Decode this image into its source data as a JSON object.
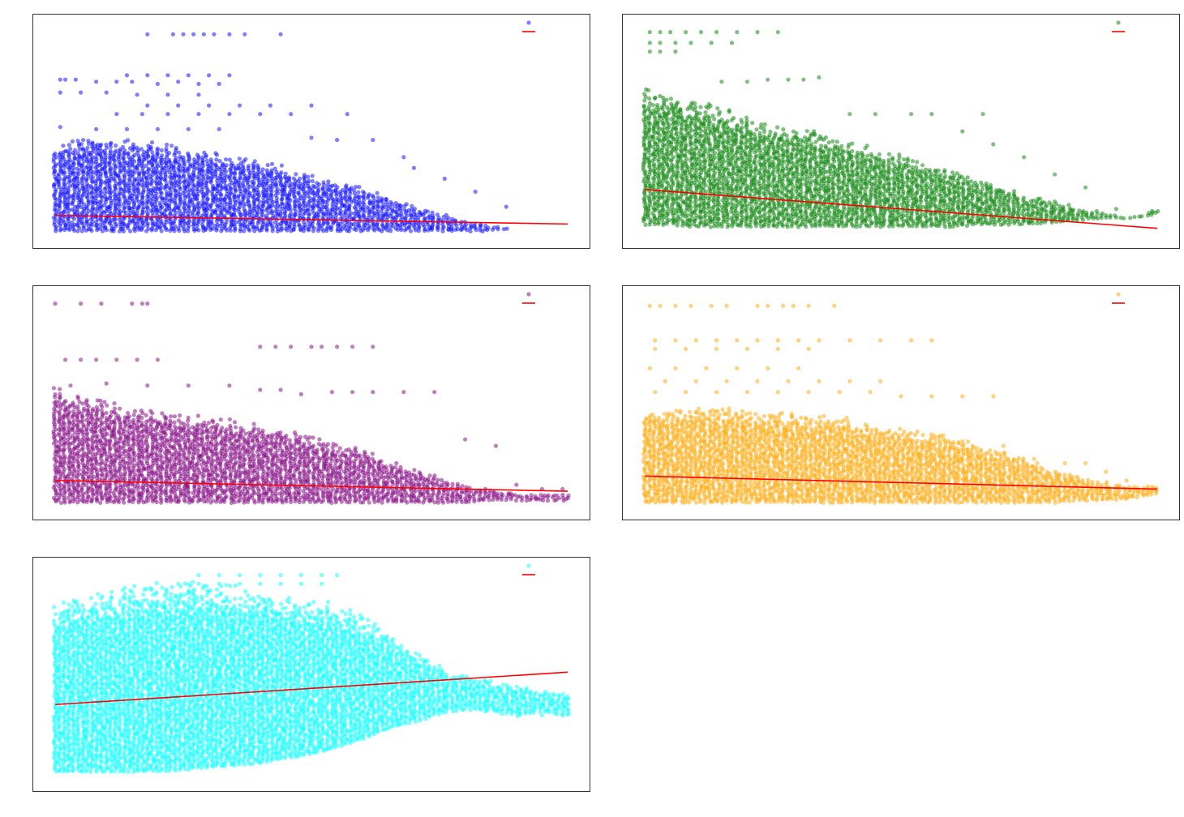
{
  "chart_data": [
    {
      "type": "scatter",
      "title": "",
      "xlabel": "",
      "ylabel": "",
      "grid": false,
      "legend": "top-right",
      "xlim": [
        0,
        100
      ],
      "ylim": [
        0,
        100
      ],
      "colors": {
        "points": "#0000ff",
        "fit": "#ff0000"
      },
      "series": [
        {
          "role": "points"
        },
        {
          "role": "fit",
          "kind": "line",
          "x": [
            0,
            100
          ],
          "y": [
            11,
            7
          ]
        }
      ],
      "point_cloud": {
        "x": [
          0,
          5,
          10,
          15,
          20,
          25,
          30,
          35,
          40,
          45,
          50,
          55,
          60,
          65,
          70,
          75,
          80,
          85,
          90,
          95,
          100
        ],
        "y_max": [
          45,
          49,
          48,
          47,
          46,
          44,
          42,
          40,
          38,
          34,
          30,
          27,
          24,
          20,
          16,
          12,
          9,
          6,
          4,
          3,
          3
        ],
        "y_min": [
          4,
          4,
          4,
          4,
          4,
          4,
          4,
          4,
          4,
          4,
          4,
          4,
          4,
          4,
          4,
          4,
          4,
          4,
          5,
          5,
          5
        ]
      },
      "outliers": [
        [
          18,
          95
        ],
        [
          23,
          95
        ],
        [
          25,
          95
        ],
        [
          27,
          95
        ],
        [
          29,
          95
        ],
        [
          31,
          95
        ],
        [
          34,
          95
        ],
        [
          37,
          95
        ],
        [
          44,
          95
        ],
        [
          1,
          74
        ],
        [
          2,
          74
        ],
        [
          4,
          74
        ],
        [
          8,
          73
        ],
        [
          12,
          73
        ],
        [
          15,
          73
        ],
        [
          20,
          72
        ],
        [
          24,
          73
        ],
        [
          28,
          72
        ],
        [
          32,
          72
        ],
        [
          14,
          76
        ],
        [
          18,
          76
        ],
        [
          22,
          76
        ],
        [
          26,
          76
        ],
        [
          30,
          76
        ],
        [
          34,
          76
        ],
        [
          1,
          68
        ],
        [
          5,
          68
        ],
        [
          10,
          68
        ],
        [
          16,
          67
        ],
        [
          22,
          67
        ],
        [
          28,
          67
        ],
        [
          12,
          58
        ],
        [
          17,
          58
        ],
        [
          22,
          58
        ],
        [
          28,
          58
        ],
        [
          34,
          58
        ],
        [
          40,
          58
        ],
        [
          46,
          58
        ],
        [
          57,
          58
        ],
        [
          18,
          62
        ],
        [
          24,
          62
        ],
        [
          30,
          62
        ],
        [
          36,
          62
        ],
        [
          42,
          62
        ],
        [
          50,
          62
        ],
        [
          1,
          52
        ],
        [
          8,
          51
        ],
        [
          14,
          51
        ],
        [
          20,
          51
        ],
        [
          26,
          51
        ],
        [
          32,
          51
        ],
        [
          50,
          47
        ],
        [
          55,
          46
        ],
        [
          62,
          46
        ],
        [
          68,
          38
        ],
        [
          70,
          33
        ],
        [
          76,
          28
        ],
        [
          82,
          22
        ],
        [
          88,
          15
        ]
      ]
    },
    {
      "type": "scatter",
      "title": "",
      "xlabel": "",
      "ylabel": "",
      "grid": false,
      "legend": "top-right",
      "xlim": [
        0,
        100
      ],
      "ylim": [
        0,
        100
      ],
      "colors": {
        "points": "#008000",
        "fit": "#ff0000"
      },
      "series": [
        {
          "role": "points"
        },
        {
          "role": "fit",
          "kind": "line",
          "x": [
            0,
            100
          ],
          "y": [
            23,
            5
          ]
        }
      ],
      "point_cloud": {
        "x": [
          0,
          5,
          10,
          15,
          20,
          25,
          30,
          35,
          40,
          45,
          50,
          55,
          60,
          65,
          70,
          75,
          80,
          85,
          90,
          95,
          100
        ],
        "y_max": [
          72,
          68,
          66,
          62,
          58,
          55,
          52,
          50,
          46,
          42,
          40,
          36,
          33,
          28,
          24,
          20,
          18,
          14,
          12,
          10,
          14
        ],
        "y_min": [
          7,
          7,
          6,
          6,
          6,
          6,
          6,
          6,
          6,
          6,
          6,
          6,
          6,
          7,
          7,
          7,
          8,
          9,
          10,
          10,
          12
        ]
      },
      "outliers": [
        [
          1,
          96
        ],
        [
          3,
          96
        ],
        [
          5,
          96
        ],
        [
          8,
          96
        ],
        [
          11,
          96
        ],
        [
          14,
          96
        ],
        [
          18,
          96
        ],
        [
          22,
          96
        ],
        [
          26,
          96
        ],
        [
          1,
          91
        ],
        [
          3,
          91
        ],
        [
          6,
          91
        ],
        [
          9,
          91
        ],
        [
          13,
          91
        ],
        [
          17,
          91
        ],
        [
          1,
          87
        ],
        [
          3,
          87
        ],
        [
          6,
          87
        ],
        [
          15,
          73
        ],
        [
          20,
          73
        ],
        [
          24,
          74
        ],
        [
          28,
          74
        ],
        [
          31,
          74
        ],
        [
          34,
          75
        ],
        [
          40,
          58
        ],
        [
          45,
          58
        ],
        [
          52,
          58
        ],
        [
          56,
          58
        ],
        [
          66,
          58
        ],
        [
          62,
          50
        ],
        [
          68,
          44
        ],
        [
          74,
          38
        ],
        [
          80,
          30
        ],
        [
          86,
          24
        ],
        [
          92,
          14
        ],
        [
          99,
          13
        ]
      ]
    },
    {
      "type": "scatter",
      "title": "",
      "xlabel": "",
      "ylabel": "",
      "grid": false,
      "legend": "top-right",
      "xlim": [
        0,
        100
      ],
      "ylim": [
        0,
        100
      ],
      "colors": {
        "points": "#800080",
        "fit": "#ff0000"
      },
      "series": [
        {
          "role": "points"
        },
        {
          "role": "fit",
          "kind": "line",
          "x": [
            0,
            100
          ],
          "y": [
            14,
            9
          ]
        }
      ],
      "point_cloud": {
        "x": [
          0,
          5,
          10,
          15,
          20,
          25,
          30,
          35,
          40,
          45,
          50,
          55,
          60,
          65,
          70,
          75,
          80,
          85,
          90,
          95,
          100
        ],
        "y_max": [
          58,
          55,
          52,
          50,
          48,
          46,
          44,
          42,
          40,
          38,
          35,
          32,
          28,
          24,
          20,
          16,
          12,
          10,
          8,
          8,
          8
        ],
        "y_min": [
          4,
          4,
          4,
          4,
          4,
          4,
          4,
          4,
          4,
          4,
          4,
          4,
          4,
          4,
          4,
          4,
          4,
          5,
          5,
          5,
          5
        ]
      },
      "outliers": [
        [
          0,
          96
        ],
        [
          5,
          96
        ],
        [
          9,
          96
        ],
        [
          15,
          96
        ],
        [
          17,
          96
        ],
        [
          18,
          96
        ],
        [
          40,
          76
        ],
        [
          43,
          76
        ],
        [
          46,
          76
        ],
        [
          50,
          76
        ],
        [
          52,
          76
        ],
        [
          55,
          76
        ],
        [
          58,
          76
        ],
        [
          62,
          76
        ],
        [
          2,
          70
        ],
        [
          5,
          70
        ],
        [
          8,
          70
        ],
        [
          12,
          70
        ],
        [
          16,
          70
        ],
        [
          20,
          70
        ],
        [
          3,
          58
        ],
        [
          10,
          59
        ],
        [
          18,
          58
        ],
        [
          26,
          58
        ],
        [
          34,
          58
        ],
        [
          40,
          56
        ],
        [
          44,
          56
        ],
        [
          48,
          54
        ],
        [
          54,
          55
        ],
        [
          58,
          55
        ],
        [
          62,
          55
        ],
        [
          68,
          55
        ],
        [
          74,
          55
        ],
        [
          80,
          33
        ],
        [
          86,
          30
        ],
        [
          90,
          12
        ],
        [
          95,
          10
        ],
        [
          99,
          10
        ]
      ]
    },
    {
      "type": "scatter",
      "title": "",
      "xlabel": "",
      "ylabel": "",
      "grid": false,
      "legend": "top-right",
      "xlim": [
        0,
        100
      ],
      "ylim": [
        0,
        100
      ],
      "colors": {
        "points": "#ffa500",
        "fit": "#ff0000"
      },
      "series": [
        {
          "role": "points"
        },
        {
          "role": "fit",
          "kind": "line",
          "x": [
            0,
            100
          ],
          "y": [
            16,
            10
          ]
        }
      ],
      "point_cloud": {
        "x": [
          0,
          5,
          10,
          15,
          20,
          25,
          30,
          35,
          40,
          45,
          50,
          55,
          60,
          65,
          70,
          75,
          80,
          85,
          90,
          95,
          100
        ],
        "y_max": [
          48,
          48,
          49,
          49,
          48,
          47,
          46,
          45,
          43,
          41,
          39,
          37,
          35,
          32,
          28,
          24,
          20,
          16,
          14,
          12,
          12
        ],
        "y_min": [
          4,
          4,
          4,
          4,
          4,
          4,
          4,
          4,
          4,
          4,
          4,
          4,
          4,
          4,
          4,
          4,
          4,
          5,
          5,
          6,
          8
        ]
      },
      "outliers": [
        [
          1,
          95
        ],
        [
          3,
          95
        ],
        [
          6,
          95
        ],
        [
          9,
          95
        ],
        [
          13,
          95
        ],
        [
          16,
          95
        ],
        [
          22,
          95
        ],
        [
          24,
          95
        ],
        [
          27,
          95
        ],
        [
          29,
          95
        ],
        [
          32,
          95
        ],
        [
          37,
          95
        ],
        [
          2,
          79
        ],
        [
          6,
          79
        ],
        [
          10,
          79
        ],
        [
          14,
          79
        ],
        [
          18,
          79
        ],
        [
          22,
          79
        ],
        [
          26,
          79
        ],
        [
          30,
          79
        ],
        [
          34,
          79
        ],
        [
          40,
          79
        ],
        [
          46,
          79
        ],
        [
          52,
          79
        ],
        [
          56,
          79
        ],
        [
          2,
          75
        ],
        [
          8,
          75
        ],
        [
          14,
          75
        ],
        [
          20,
          75
        ],
        [
          26,
          75
        ],
        [
          32,
          75
        ],
        [
          1,
          66
        ],
        [
          6,
          66
        ],
        [
          12,
          66
        ],
        [
          18,
          66
        ],
        [
          24,
          66
        ],
        [
          30,
          66
        ],
        [
          4,
          60
        ],
        [
          10,
          60
        ],
        [
          16,
          60
        ],
        [
          22,
          60
        ],
        [
          28,
          60
        ],
        [
          34,
          60
        ],
        [
          40,
          60
        ],
        [
          46,
          60
        ],
        [
          2,
          55
        ],
        [
          8,
          55
        ],
        [
          14,
          55
        ],
        [
          20,
          55
        ],
        [
          26,
          55
        ],
        [
          32,
          55
        ],
        [
          38,
          55
        ],
        [
          44,
          55
        ],
        [
          50,
          53
        ],
        [
          56,
          53
        ],
        [
          62,
          53
        ],
        [
          68,
          53
        ],
        [
          70,
          30
        ],
        [
          76,
          24
        ],
        [
          82,
          22
        ],
        [
          86,
          22
        ],
        [
          90,
          18
        ],
        [
          94,
          14
        ],
        [
          99,
          11
        ]
      ]
    },
    {
      "type": "scatter",
      "title": "",
      "xlabel": "",
      "ylabel": "",
      "grid": false,
      "legend": "top-right",
      "xlim": [
        0,
        100
      ],
      "ylim": [
        0,
        100
      ],
      "colors": {
        "points": "#00ffff",
        "fit": "#ff0000"
      },
      "series": [
        {
          "role": "points"
        },
        {
          "role": "fit",
          "kind": "line",
          "x": [
            0,
            100
          ],
          "y": [
            36,
            51
          ]
        }
      ],
      "point_cloud": {
        "x": [
          0,
          5,
          10,
          15,
          20,
          25,
          30,
          35,
          40,
          45,
          50,
          55,
          60,
          65,
          70,
          75,
          80,
          85,
          90,
          95,
          100
        ],
        "y_max": [
          85,
          88,
          90,
          92,
          94,
          94,
          93,
          92,
          90,
          88,
          86,
          83,
          78,
          70,
          62,
          55,
          50,
          47,
          45,
          43,
          42
        ],
        "y_min": [
          5,
          5,
          5,
          5,
          5,
          6,
          7,
          8,
          9,
          11,
          13,
          16,
          20,
          25,
          28,
          32,
          34,
          33,
          31,
          33,
          31
        ]
      },
      "outliers": [
        [
          28,
          96
        ],
        [
          32,
          96
        ],
        [
          36,
          96
        ],
        [
          40,
          96
        ],
        [
          44,
          96
        ],
        [
          48,
          96
        ],
        [
          52,
          96
        ],
        [
          55,
          96
        ],
        [
          24,
          92
        ],
        [
          28,
          92
        ],
        [
          32,
          92
        ],
        [
          36,
          92
        ],
        [
          40,
          92
        ],
        [
          44,
          92
        ],
        [
          48,
          92
        ],
        [
          52,
          92
        ],
        [
          85,
          47
        ],
        [
          90,
          42
        ],
        [
          95,
          31
        ],
        [
          99,
          31
        ]
      ]
    }
  ]
}
